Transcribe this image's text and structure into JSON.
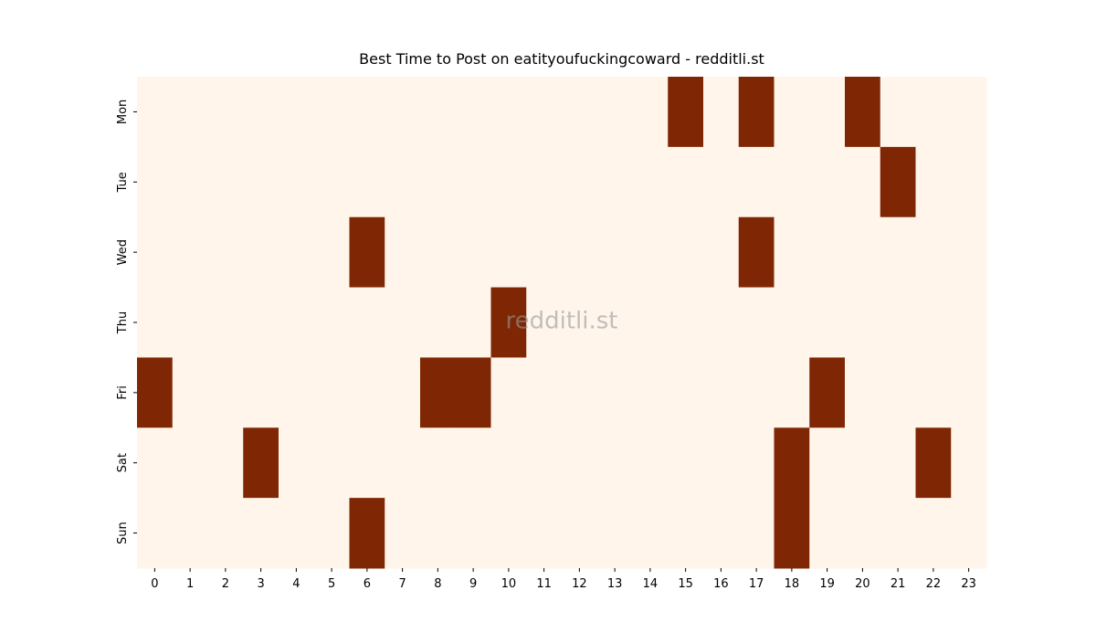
{
  "chart_data": {
    "type": "heatmap",
    "title": "Best Time to Post on eatityoufuckingcoward - redditli.st",
    "watermark": "redditli.st",
    "x": [
      "0",
      "1",
      "2",
      "3",
      "4",
      "5",
      "6",
      "7",
      "8",
      "9",
      "10",
      "11",
      "12",
      "13",
      "14",
      "15",
      "16",
      "17",
      "18",
      "19",
      "20",
      "21",
      "22",
      "23"
    ],
    "y": [
      "Mon",
      "Tue",
      "Wed",
      "Thu",
      "Fri",
      "Sat",
      "Sun"
    ],
    "values": [
      [
        0,
        0,
        0,
        0,
        0,
        0,
        0,
        0,
        0,
        0,
        0,
        0,
        0,
        0,
        0,
        1,
        0,
        1,
        0,
        0,
        1,
        0,
        0,
        0
      ],
      [
        0,
        0,
        0,
        0,
        0,
        0,
        0,
        0,
        0,
        0,
        0,
        0,
        0,
        0,
        0,
        0,
        0,
        0,
        0,
        0,
        0,
        1,
        0,
        0
      ],
      [
        0,
        0,
        0,
        0,
        0,
        0,
        1,
        0,
        0,
        0,
        0,
        0,
        0,
        0,
        0,
        0,
        0,
        1,
        0,
        0,
        0,
        0,
        0,
        0
      ],
      [
        0,
        0,
        0,
        0,
        0,
        0,
        0,
        0,
        0,
        0,
        1,
        0,
        0,
        0,
        0,
        0,
        0,
        0,
        0,
        0,
        0,
        0,
        0,
        0
      ],
      [
        1,
        0,
        0,
        0,
        0,
        0,
        0,
        0,
        1,
        1,
        0,
        0,
        0,
        0,
        0,
        0,
        0,
        0,
        0,
        1,
        0,
        0,
        0,
        0
      ],
      [
        0,
        0,
        0,
        1,
        0,
        0,
        0,
        0,
        0,
        0,
        0,
        0,
        0,
        0,
        0,
        0,
        0,
        0,
        1,
        0,
        0,
        0,
        1,
        0
      ],
      [
        0,
        0,
        0,
        0,
        0,
        0,
        1,
        0,
        0,
        0,
        0,
        0,
        0,
        0,
        0,
        0,
        0,
        0,
        1,
        0,
        0,
        0,
        0,
        0
      ]
    ],
    "colors": [
      "#fff5eb",
      "#7f2704"
    ]
  }
}
